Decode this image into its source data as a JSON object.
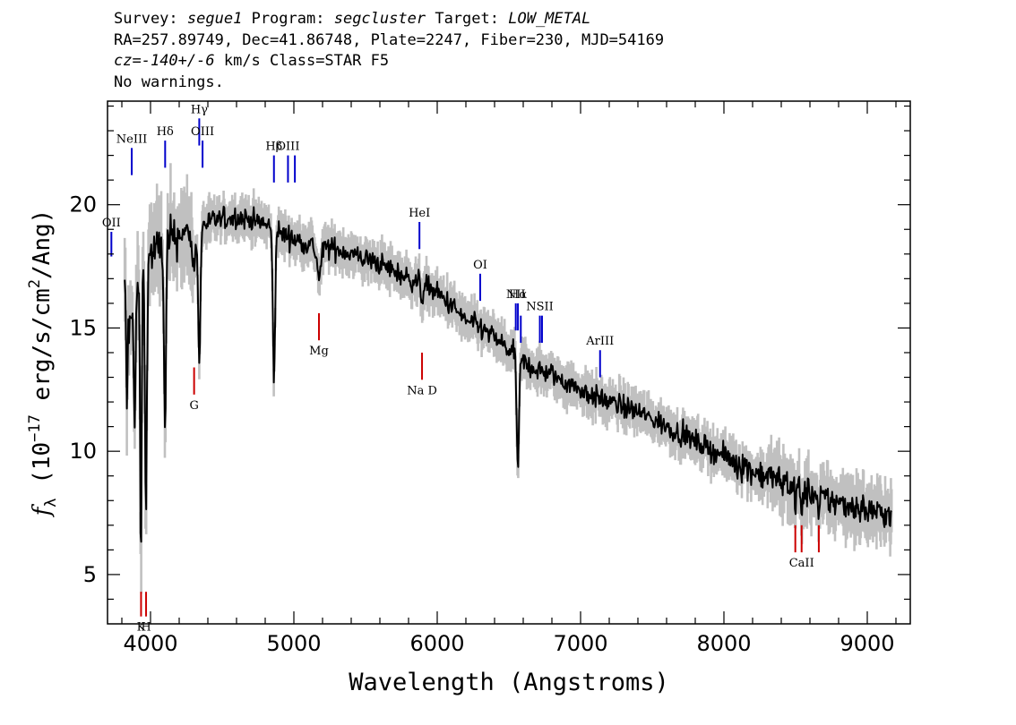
{
  "header": {
    "survey_label": "Survey:",
    "survey": "segue1",
    "program_label": "Program:",
    "program": "segcluster",
    "target_label": "Target:",
    "target": "LOW_METAL",
    "line2": "RA=257.89749, Dec=41.86748, Plate=2247, Fiber=230, MJD=54169",
    "cz_label": "cz=",
    "cz_value": "-140+/-6",
    "cz_rest": " km/s Class=STAR F5",
    "warnings": "No warnings."
  },
  "chart_data": {
    "type": "line",
    "xlabel": "Wavelength (Angstroms)",
    "ylabel_parts": {
      "f": "f",
      "sub": "λ",
      "pre": " (10",
      "sup": "−17",
      "mid": " erg/s/cm",
      "sup2": "2",
      "post": "/Ang)"
    },
    "xlim": [
      3700,
      9300
    ],
    "ylim": [
      3,
      24.2
    ],
    "xticks": [
      4000,
      5000,
      6000,
      7000,
      8000,
      9000
    ],
    "yticks": [
      5,
      10,
      15,
      20
    ],
    "xtick_labels": [
      "4000",
      "5000",
      "6000",
      "7000",
      "8000",
      "9000"
    ],
    "ytick_labels": [
      "5",
      "10",
      "15",
      "20"
    ],
    "grid": false,
    "colors": {
      "flux": "#000000",
      "error": "#c0c0c0",
      "emission": "#0000cc",
      "absorption": "#cc0000"
    },
    "spectrum_nodes": [
      [
        3820,
        16.5
      ],
      [
        3850,
        14.8
      ],
      [
        3900,
        16.2
      ],
      [
        3950,
        17.2
      ],
      [
        4000,
        18.0
      ],
      [
        4050,
        18.2
      ],
      [
        4100,
        18.5
      ],
      [
        4150,
        18.6
      ],
      [
        4200,
        18.8
      ],
      [
        4300,
        19.0
      ],
      [
        4400,
        19.3
      ],
      [
        4500,
        19.4
      ],
      [
        4600,
        19.5
      ],
      [
        4700,
        19.4
      ],
      [
        4800,
        19.2
      ],
      [
        4900,
        18.9
      ],
      [
        5000,
        18.6
      ],
      [
        5100,
        18.4
      ],
      [
        5200,
        18.3
      ],
      [
        5300,
        18.2
      ],
      [
        5400,
        18.0
      ],
      [
        5500,
        17.8
      ],
      [
        5600,
        17.6
      ],
      [
        5700,
        17.3
      ],
      [
        5800,
        17.0
      ],
      [
        5900,
        16.8
      ],
      [
        6000,
        16.4
      ],
      [
        6100,
        15.9
      ],
      [
        6200,
        15.3
      ],
      [
        6300,
        15.0
      ],
      [
        6400,
        14.6
      ],
      [
        6500,
        14.1
      ],
      [
        6600,
        13.6
      ],
      [
        6700,
        13.3
      ],
      [
        6800,
        13.1
      ],
      [
        6900,
        12.8
      ],
      [
        7000,
        12.5
      ],
      [
        7100,
        12.2
      ],
      [
        7200,
        12.0
      ],
      [
        7300,
        11.8
      ],
      [
        7400,
        11.6
      ],
      [
        7500,
        11.3
      ],
      [
        7600,
        11.0
      ],
      [
        7700,
        10.7
      ],
      [
        7800,
        10.4
      ],
      [
        7900,
        10.1
      ],
      [
        8000,
        9.8
      ],
      [
        8100,
        9.5
      ],
      [
        8200,
        9.2
      ],
      [
        8300,
        9.0
      ],
      [
        8400,
        8.8
      ],
      [
        8500,
        8.6
      ],
      [
        8600,
        8.3
      ],
      [
        8700,
        8.1
      ],
      [
        8800,
        7.9
      ],
      [
        8900,
        7.8
      ],
      [
        9000,
        7.6
      ],
      [
        9100,
        7.5
      ],
      [
        9170,
        7.4
      ]
    ],
    "absorption_features": [
      {
        "center": 3835,
        "depth": 4.0,
        "width": 4
      },
      {
        "center": 3890,
        "depth": 5.5,
        "width": 5
      },
      {
        "center": 3933,
        "depth": 12.0,
        "width": 5
      },
      {
        "center": 3968,
        "depth": 10.5,
        "width": 6
      },
      {
        "center": 4101,
        "depth": 8.0,
        "width": 7
      },
      {
        "center": 4300,
        "depth": 1.5,
        "width": 12
      },
      {
        "center": 4340,
        "depth": 5.5,
        "width": 8
      },
      {
        "center": 4861,
        "depth": 6.0,
        "width": 8
      },
      {
        "center": 5175,
        "depth": 1.2,
        "width": 15
      },
      {
        "center": 5893,
        "depth": 0.6,
        "width": 8
      },
      {
        "center": 6563,
        "depth": 4.5,
        "width": 8
      },
      {
        "center": 8498,
        "depth": 0.8,
        "width": 6
      },
      {
        "center": 8542,
        "depth": 1.2,
        "width": 6
      },
      {
        "center": 8662,
        "depth": 1.0,
        "width": 6
      }
    ],
    "emission_lines": [
      {
        "label": "OII",
        "wave": 3727,
        "y_top": 18.9,
        "y_bottom": 17.9
      },
      {
        "label": "NeIII",
        "wave": 3869,
        "y_top": 22.3,
        "y_bottom": 21.2
      },
      {
        "label": "Hδ",
        "wave": 4102,
        "y_top": 22.6,
        "y_bottom": 21.5
      },
      {
        "label": "Hγ",
        "wave": 4340,
        "y_top": 23.5,
        "y_bottom": 22.4
      },
      {
        "label": "OIII",
        "wave": 4363,
        "y_top": 22.6,
        "y_bottom": 21.5
      },
      {
        "label": "Hβ",
        "wave": 4861,
        "y_top": 22.0,
        "y_bottom": 20.9
      },
      {
        "label": "OIII",
        "wave": 4959,
        "y_top": 22.0,
        "y_bottom": 20.9
      },
      {
        "label": "",
        "wave": 5007,
        "y_top": 22.0,
        "y_bottom": 20.9
      },
      {
        "label": "HeI",
        "wave": 5876,
        "y_top": 19.3,
        "y_bottom": 18.2
      },
      {
        "label": "OI",
        "wave": 6300,
        "y_top": 17.2,
        "y_bottom": 16.1
      },
      {
        "label": "NII",
        "wave": 6548,
        "y_top": 16.0,
        "y_bottom": 14.9
      },
      {
        "label": "Hα",
        "wave": 6563,
        "y_top": 16.0,
        "y_bottom": 14.9
      },
      {
        "label": "",
        "wave": 6583,
        "y_top": 15.5,
        "y_bottom": 14.4
      },
      {
        "label": "NSII",
        "wave": 6716,
        "y_top": 15.5,
        "y_bottom": 14.4
      },
      {
        "label": "",
        "wave": 6731,
        "y_top": 15.5,
        "y_bottom": 14.4
      },
      {
        "label": "ArIII",
        "wave": 7136,
        "y_top": 14.1,
        "y_bottom": 13.0
      }
    ],
    "absorption_lines": [
      {
        "label": "K",
        "wave": 3934,
        "y_top": 4.3,
        "y_bottom": 3.3
      },
      {
        "label": "H",
        "wave": 3969,
        "y_top": 4.3,
        "y_bottom": 3.3
      },
      {
        "label": "G",
        "wave": 4304,
        "y_top": 13.4,
        "y_bottom": 12.3
      },
      {
        "label": "Mg",
        "wave": 5175,
        "y_top": 15.6,
        "y_bottom": 14.5
      },
      {
        "label": "Na D",
        "wave": 5894,
        "y_top": 14.0,
        "y_bottom": 12.9
      },
      {
        "label": "",
        "wave": 8498,
        "y_top": 7.0,
        "y_bottom": 5.9
      },
      {
        "label": "CaII",
        "wave": 8542,
        "y_top": 7.0,
        "y_bottom": 5.9
      },
      {
        "label": "",
        "wave": 8662,
        "y_top": 7.0,
        "y_bottom": 5.9
      }
    ]
  }
}
